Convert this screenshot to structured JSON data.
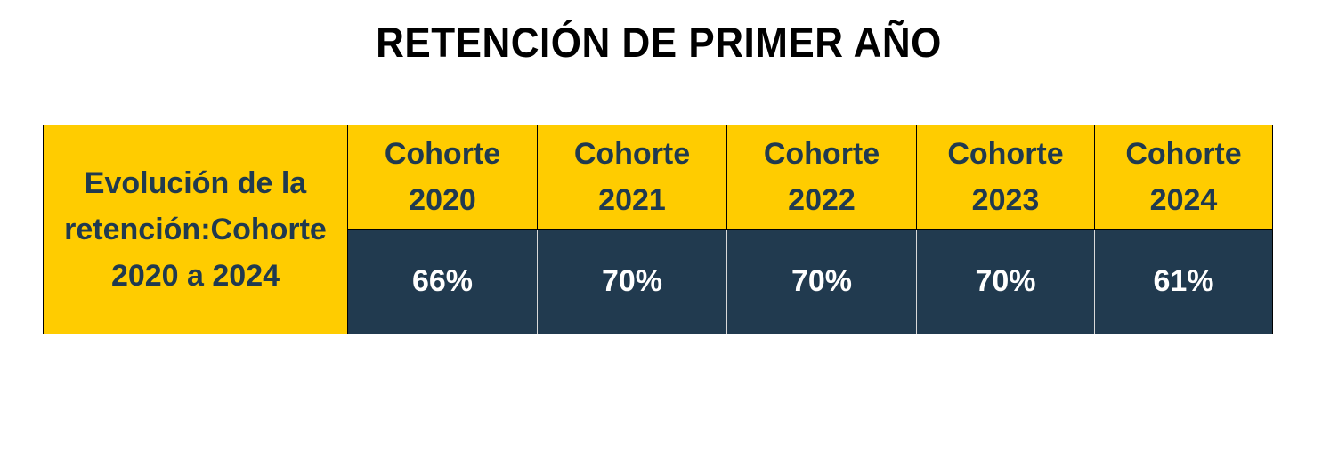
{
  "chart_data": {
    "type": "table",
    "title": "RETENCIÓN DE PRIMER AÑO",
    "row_header": "Evolución de la retención:Cohorte 2020 a 2024",
    "categories": [
      "Cohorte 2020",
      "Cohorte 2021",
      "Cohorte 2022",
      "Cohorte 2023",
      "Cohorte 2024"
    ],
    "columns": [
      {
        "line1": "Cohorte",
        "line2": "2020",
        "value_label": "66%"
      },
      {
        "line1": "Cohorte",
        "line2": "2021",
        "value_label": "70%"
      },
      {
        "line1": "Cohorte",
        "line2": "2022",
        "value_label": "70%"
      },
      {
        "line1": "Cohorte",
        "line2": "2023",
        "value_label": "70%"
      },
      {
        "line1": "Cohorte",
        "line2": "2024",
        "value_label": "61%"
      }
    ],
    "values": [
      66,
      70,
      70,
      70,
      61
    ],
    "unit": "%"
  },
  "colors": {
    "header_fill": "#ffcc00",
    "value_fill": "#213a4f",
    "header_text": "#203a4f",
    "value_text": "#ffffff"
  }
}
